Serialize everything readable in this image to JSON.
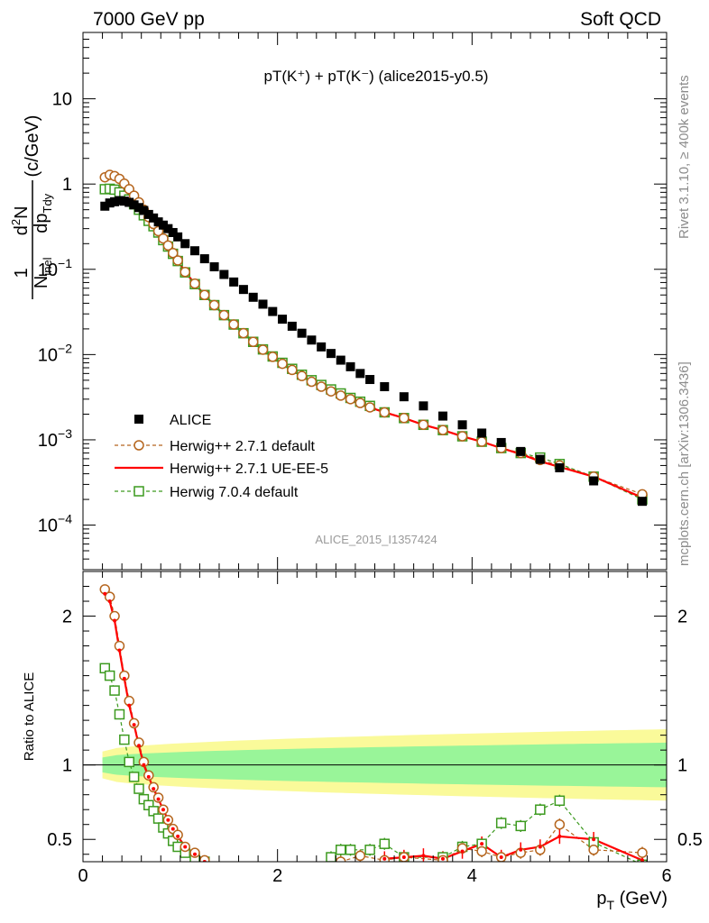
{
  "header": {
    "left": "7000 GeV pp",
    "right": "Soft QCD",
    "plot_title": "pT(K⁺) + pT(K⁻) (alice2015-y0.5)",
    "watermark": "ALICE_2015_I1357424",
    "side_top": "Rivet 3.1.10, ≥ 400k events",
    "side_bottom": "mcplots.cern.ch [arXiv:1306.3436]"
  },
  "colors": {
    "alice": "#000000",
    "herwig_pp_default": "#b5651d",
    "herwig_pp_ueee5": "#ff0000",
    "herwig7": "#3c9a1f",
    "band_inner": "#99f599",
    "band_outer": "#fafa9a"
  },
  "chart_data": [
    {
      "type": "scatter",
      "xlabel": "pT (GeV)",
      "ylabel": "1/Ninel d²N/dpT dy (c/GeV)",
      "xlim": [
        0,
        6
      ],
      "ylim": [
        3e-05,
        60
      ],
      "log_y": true,
      "y_ticks": [
        "10",
        "1",
        "10⁻¹",
        "10⁻²",
        "10⁻³",
        "10⁻⁴"
      ],
      "x_ticks": [
        "0",
        "2",
        "4",
        "6"
      ],
      "legend_position": "bottom-left",
      "series": [
        {
          "name": "ALICE",
          "marker": "filled-square",
          "x": [
            0.225,
            0.275,
            0.325,
            0.375,
            0.425,
            0.475,
            0.525,
            0.575,
            0.625,
            0.675,
            0.725,
            0.775,
            0.825,
            0.875,
            0.925,
            0.975,
            1.05,
            1.15,
            1.25,
            1.35,
            1.45,
            1.55,
            1.65,
            1.75,
            1.85,
            1.95,
            2.05,
            2.15,
            2.25,
            2.35,
            2.45,
            2.55,
            2.65,
            2.75,
            2.85,
            2.95,
            3.1,
            3.3,
            3.5,
            3.7,
            3.9,
            4.1,
            4.3,
            4.5,
            4.7,
            4.9,
            5.25,
            5.75
          ],
          "y": [
            0.55,
            0.6,
            0.62,
            0.64,
            0.63,
            0.61,
            0.57,
            0.53,
            0.49,
            0.44,
            0.4,
            0.36,
            0.33,
            0.3,
            0.27,
            0.24,
            0.2,
            0.165,
            0.133,
            0.107,
            0.087,
            0.071,
            0.058,
            0.047,
            0.039,
            0.032,
            0.026,
            0.0215,
            0.0178,
            0.0148,
            0.0123,
            0.0103,
            0.0086,
            0.0072,
            0.006,
            0.0051,
            0.0042,
            0.0032,
            0.0025,
            0.0019,
            0.0015,
            0.0012,
            0.00093,
            0.00073,
            0.00059,
            0.00047,
            0.00033,
            0.00019
          ]
        },
        {
          "name": "Herwig++ 2.7.1 default",
          "marker": "open-circle",
          "dashed": true,
          "x": [
            0.225,
            0.275,
            0.325,
            0.375,
            0.425,
            0.475,
            0.525,
            0.575,
            0.625,
            0.675,
            0.725,
            0.775,
            0.825,
            0.875,
            0.925,
            0.975,
            1.05,
            1.15,
            1.25,
            1.35,
            1.45,
            1.55,
            1.65,
            1.75,
            1.85,
            1.95,
            2.05,
            2.15,
            2.25,
            2.35,
            2.45,
            2.55,
            2.65,
            2.75,
            2.85,
            2.95,
            3.1,
            3.3,
            3.5,
            3.7,
            3.9,
            4.1,
            4.3,
            4.5,
            4.7,
            4.9,
            5.25,
            5.75
          ],
          "y": [
            1.2,
            1.28,
            1.24,
            1.15,
            1.01,
            0.87,
            0.73,
            0.61,
            0.5,
            0.41,
            0.34,
            0.28,
            0.23,
            0.19,
            0.155,
            0.127,
            0.093,
            0.068,
            0.05,
            0.038,
            0.029,
            0.0225,
            0.0178,
            0.0141,
            0.0114,
            0.0094,
            0.0078,
            0.0066,
            0.0056,
            0.0048,
            0.0042,
            0.0037,
            0.0033,
            0.003,
            0.0027,
            0.0024,
            0.0021,
            0.0018,
            0.0015,
            0.0013,
            0.0011,
            0.00095,
            0.0008,
            0.0007,
            0.00058,
            0.0005,
            0.00037,
            0.00023
          ]
        },
        {
          "name": "Herwig++ 2.7.1 UE-EE-5",
          "marker": "line",
          "dashed": false,
          "x": [
            0.225,
            0.275,
            0.325,
            0.375,
            0.425,
            0.475,
            0.525,
            0.575,
            0.625,
            0.675,
            0.725,
            0.775,
            0.825,
            0.875,
            0.925,
            0.975,
            1.05,
            1.15,
            1.25,
            1.35,
            1.45,
            1.55,
            1.65,
            1.75,
            1.85,
            1.95,
            2.05,
            2.15,
            2.25,
            2.35,
            2.45,
            2.55,
            2.65,
            2.75,
            2.85,
            2.95,
            3.1,
            3.3,
            3.5,
            3.7,
            3.9,
            4.1,
            4.3,
            4.5,
            4.7,
            4.9,
            5.25,
            5.75
          ],
          "y": [
            1.18,
            1.26,
            1.22,
            1.13,
            0.99,
            0.85,
            0.72,
            0.6,
            0.49,
            0.41,
            0.34,
            0.28,
            0.23,
            0.19,
            0.155,
            0.127,
            0.093,
            0.068,
            0.05,
            0.038,
            0.029,
            0.0225,
            0.0178,
            0.0141,
            0.0114,
            0.0094,
            0.0078,
            0.0066,
            0.0056,
            0.0048,
            0.0042,
            0.0037,
            0.0033,
            0.003,
            0.0027,
            0.0024,
            0.0021,
            0.0018,
            0.0015,
            0.0013,
            0.0011,
            0.00095,
            0.0008,
            0.00068,
            0.00056,
            0.00048,
            0.00037,
            0.00021
          ]
        },
        {
          "name": "Herwig 7.0.4 default",
          "marker": "open-square",
          "dashed": true,
          "x": [
            0.225,
            0.275,
            0.325,
            0.375,
            0.425,
            0.475,
            0.525,
            0.575,
            0.625,
            0.675,
            0.725,
            0.775,
            0.825,
            0.875,
            0.925,
            0.975,
            1.05,
            1.15,
            1.25,
            1.35,
            1.45,
            1.55,
            1.65,
            1.75,
            1.85,
            1.95,
            2.05,
            2.15,
            2.25,
            2.35,
            2.45,
            2.55,
            2.65,
            2.75,
            2.85,
            2.95,
            3.1,
            3.3,
            3.5,
            3.7,
            3.9,
            4.1,
            4.3,
            4.5,
            4.7,
            4.9,
            5.25,
            5.75
          ],
          "y": [
            0.87,
            0.88,
            0.86,
            0.8,
            0.73,
            0.66,
            0.58,
            0.5,
            0.43,
            0.37,
            0.32,
            0.27,
            0.22,
            0.185,
            0.152,
            0.125,
            0.092,
            0.067,
            0.05,
            0.038,
            0.029,
            0.0225,
            0.0178,
            0.0141,
            0.0115,
            0.0095,
            0.008,
            0.0068,
            0.0058,
            0.005,
            0.0044,
            0.0039,
            0.0035,
            0.0031,
            0.0028,
            0.0025,
            0.0021,
            0.0018,
            0.0015,
            0.0013,
            0.0011,
            0.00095,
            0.0008,
            0.0007,
            0.00062,
            0.00052,
            0.00037,
            0.0002
          ]
        }
      ]
    },
    {
      "type": "line",
      "ylabel": "Ratio to ALICE",
      "xlabel": "pT (GeV)",
      "xlim": [
        0,
        6
      ],
      "ylim": [
        0.35,
        2.3
      ],
      "y_ticks": [
        "0.5",
        "1",
        "2"
      ],
      "x_ticks": [
        "0",
        "2",
        "4",
        "6"
      ],
      "band_x": [
        0.2,
        6.0
      ],
      "band_inner_halfwidth": [
        0.05,
        0.15
      ],
      "band_outer_halfwidth": [
        0.09,
        0.24
      ],
      "series": [
        {
          "name": "Herwig++ 2.7.1 default",
          "x": [
            0.225,
            0.275,
            0.325,
            0.375,
            0.425,
            0.475,
            0.525,
            0.575,
            0.625,
            0.675,
            0.725,
            0.775,
            0.825,
            0.875,
            0.925,
            0.975,
            1.05,
            1.15,
            1.25,
            2.65,
            2.85,
            3.1,
            3.3,
            3.7,
            3.9,
            4.1,
            4.3,
            4.5,
            4.7,
            4.9,
            5.25,
            5.75
          ],
          "y": [
            2.18,
            2.13,
            2.0,
            1.8,
            1.6,
            1.43,
            1.28,
            1.15,
            1.02,
            0.93,
            0.85,
            0.78,
            0.7,
            0.63,
            0.57,
            0.53,
            0.45,
            0.41,
            0.36,
            0.35,
            0.39,
            0.36,
            0.38,
            0.36,
            0.44,
            0.42,
            0.38,
            0.41,
            0.43,
            0.6,
            0.43,
            0.41
          ]
        },
        {
          "name": "Herwig++ 2.7.1 UE-EE-5",
          "x": [
            0.225,
            0.275,
            0.325,
            0.375,
            0.425,
            0.475,
            0.525,
            0.575,
            0.625,
            0.675,
            0.725,
            0.775,
            0.825,
            0.875,
            0.925,
            0.975,
            1.05,
            1.15,
            1.25,
            3.1,
            3.3,
            3.5,
            3.7,
            3.9,
            4.1,
            4.3,
            4.5,
            4.7,
            4.9,
            5.25,
            5.75
          ],
          "y": [
            2.15,
            2.1,
            1.97,
            1.77,
            1.58,
            1.4,
            1.27,
            1.13,
            1.0,
            0.92,
            0.84,
            0.77,
            0.7,
            0.63,
            0.57,
            0.52,
            0.45,
            0.4,
            0.35,
            0.37,
            0.38,
            0.39,
            0.37,
            0.42,
            0.47,
            0.38,
            0.43,
            0.45,
            0.52,
            0.5,
            0.36
          ]
        },
        {
          "name": "Herwig 7.0.4 default",
          "x": [
            0.225,
            0.275,
            0.325,
            0.375,
            0.425,
            0.475,
            0.525,
            0.575,
            0.625,
            0.675,
            0.725,
            0.775,
            0.825,
            0.875,
            0.925,
            0.975,
            1.05,
            1.15,
            1.25,
            2.55,
            2.65,
            2.75,
            2.95,
            3.1,
            3.3,
            3.7,
            3.9,
            4.1,
            4.3,
            4.5,
            4.7,
            4.9,
            5.25,
            5.75
          ],
          "y": [
            1.65,
            1.6,
            1.5,
            1.34,
            1.17,
            1.02,
            0.92,
            0.84,
            0.77,
            0.73,
            0.69,
            0.64,
            0.58,
            0.54,
            0.49,
            0.45,
            0.41,
            0.37,
            0.35,
            0.38,
            0.43,
            0.43,
            0.43,
            0.47,
            0.38,
            0.38,
            0.45,
            0.47,
            0.61,
            0.59,
            0.7,
            0.76,
            0.48,
            0.33
          ]
        }
      ]
    }
  ]
}
